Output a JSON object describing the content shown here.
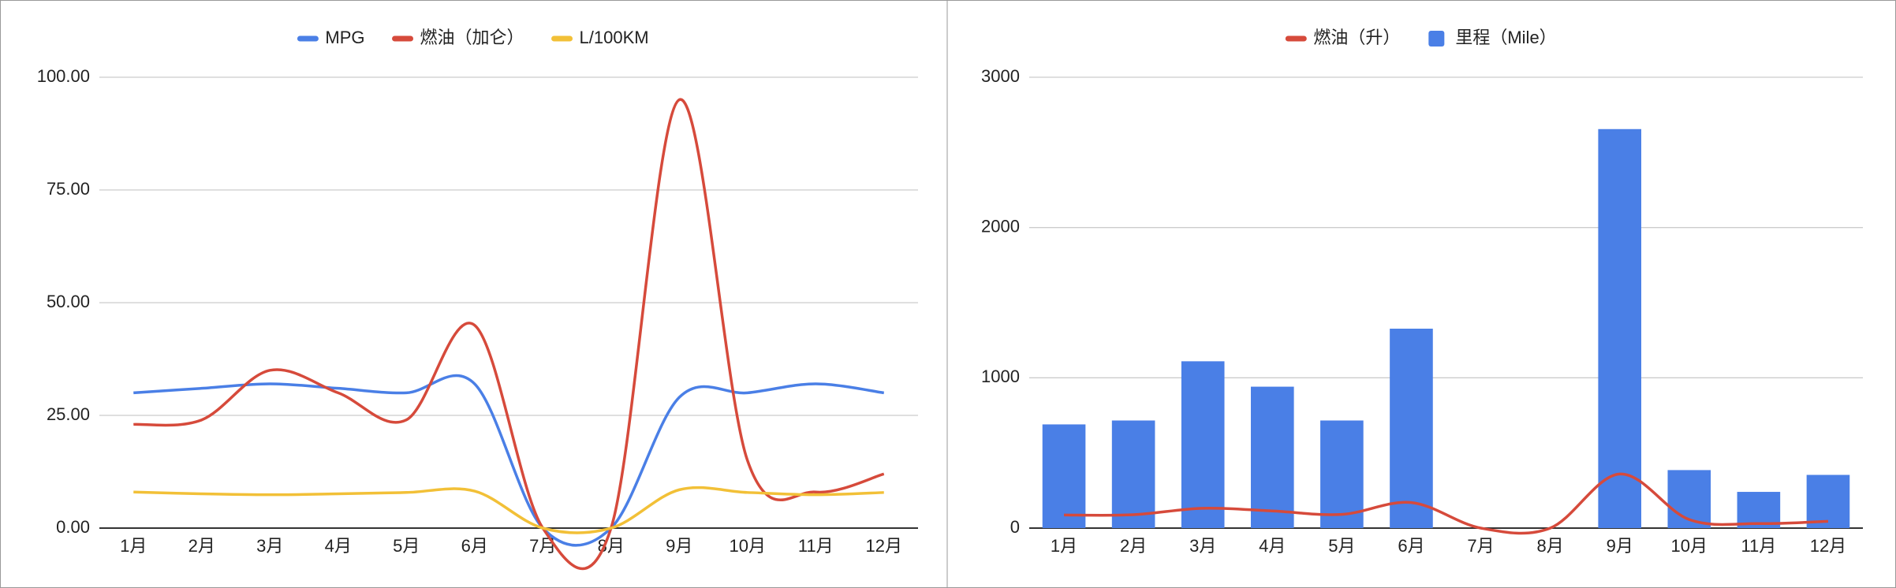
{
  "chart_data": [
    {
      "type": "line",
      "categories": [
        "1月",
        "2月",
        "3月",
        "4月",
        "5月",
        "6月",
        "7月",
        "8月",
        "9月",
        "10月",
        "11月",
        "12月"
      ],
      "series": [
        {
          "name": "MPG",
          "color": "#4a7fe6",
          "values": [
            30,
            31,
            32,
            31,
            30,
            32,
            0,
            0,
            29,
            30,
            32,
            30
          ]
        },
        {
          "name": "燃油（加仑）",
          "color": "#d64a3b",
          "values": [
            23,
            24,
            35,
            30,
            24,
            45,
            0,
            0,
            95,
            15,
            8,
            12
          ]
        },
        {
          "name": "L/100KM",
          "color": "#f2c037",
          "values": [
            8,
            7.6,
            7.4,
            7.6,
            7.9,
            8.2,
            0,
            0,
            8.5,
            7.9,
            7.4,
            7.9
          ]
        }
      ],
      "ylim": [
        0,
        100
      ],
      "yticks": [
        {
          "value": 0,
          "label": "0.00"
        },
        {
          "value": 25,
          "label": "25.00"
        },
        {
          "value": 50,
          "label": "50.00"
        },
        {
          "value": 75,
          "label": "75.00"
        },
        {
          "value": 100,
          "label": "100.00"
        }
      ],
      "grid": true,
      "legend": "top"
    },
    {
      "type": "combo",
      "categories": [
        "1月",
        "2月",
        "3月",
        "4月",
        "5月",
        "6月",
        "7月",
        "8月",
        "9月",
        "10月",
        "11月",
        "12月"
      ],
      "series": [
        {
          "name": "燃油（升）",
          "type": "line",
          "color": "#d64a3b",
          "values": [
            87,
            89,
            132,
            114,
            91,
            170,
            0,
            0,
            360,
            57,
            30,
            45
          ]
        },
        {
          "name": "里程（Mile）",
          "type": "bar",
          "color": "#4a7fe6",
          "values": [
            690,
            716,
            1110,
            941,
            716,
            1327,
            0,
            0,
            2655,
            386,
            241,
            354
          ]
        }
      ],
      "ylim": [
        0,
        3000
      ],
      "yticks": [
        0,
        1000,
        2000,
        3000
      ],
      "grid": true,
      "legend": "top"
    }
  ]
}
